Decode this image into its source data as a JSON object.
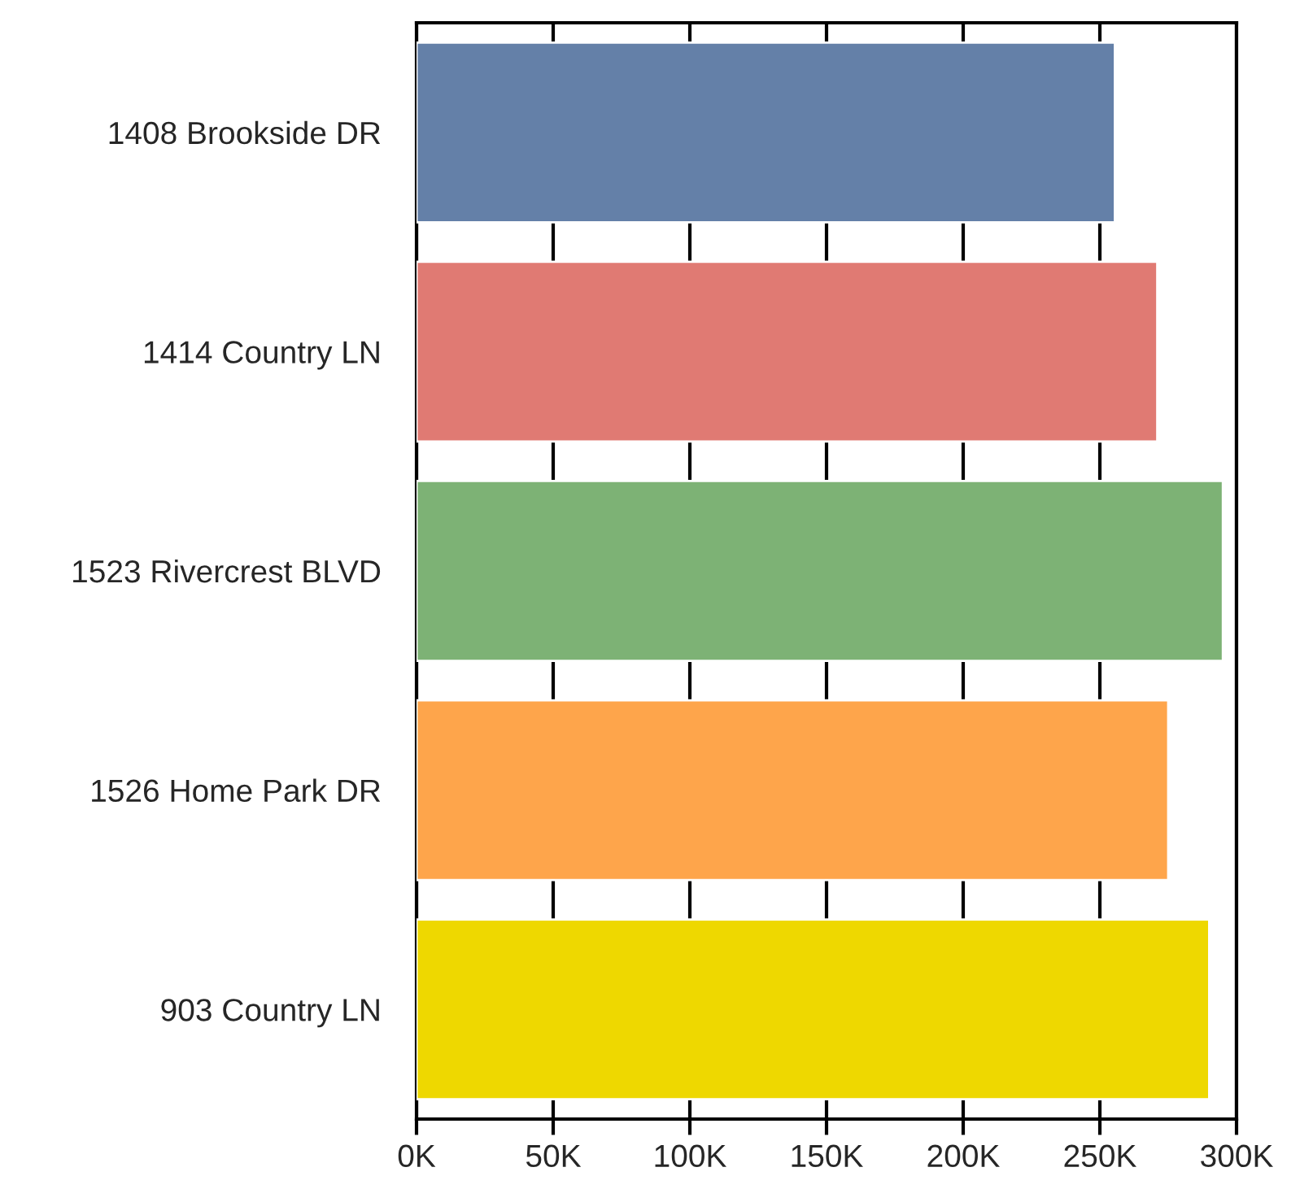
{
  "chart_data": {
    "type": "bar",
    "orientation": "horizontal",
    "categories": [
      "1408 Brookside DR",
      "1414 Country LN",
      "1523 Rivercrest BLVD",
      "1526 Home Park DR",
      "903 Country LN"
    ],
    "values": [
      255500,
      271000,
      295000,
      275000,
      290000
    ],
    "colors": [
      "#6480a8",
      "#e07a73",
      "#7db275",
      "#fea54b",
      "#eed800"
    ],
    "xlim": [
      0,
      300000
    ],
    "xticks": [
      {
        "value": 0,
        "label": "0K"
      },
      {
        "value": 50000,
        "label": "50K"
      },
      {
        "value": 100000,
        "label": "100K"
      },
      {
        "value": 150000,
        "label": "150K"
      },
      {
        "value": 200000,
        "label": "200K"
      },
      {
        "value": 250000,
        "label": "250K"
      },
      {
        "value": 300000,
        "label": "300K"
      }
    ],
    "grid": "x",
    "legend": false
  }
}
